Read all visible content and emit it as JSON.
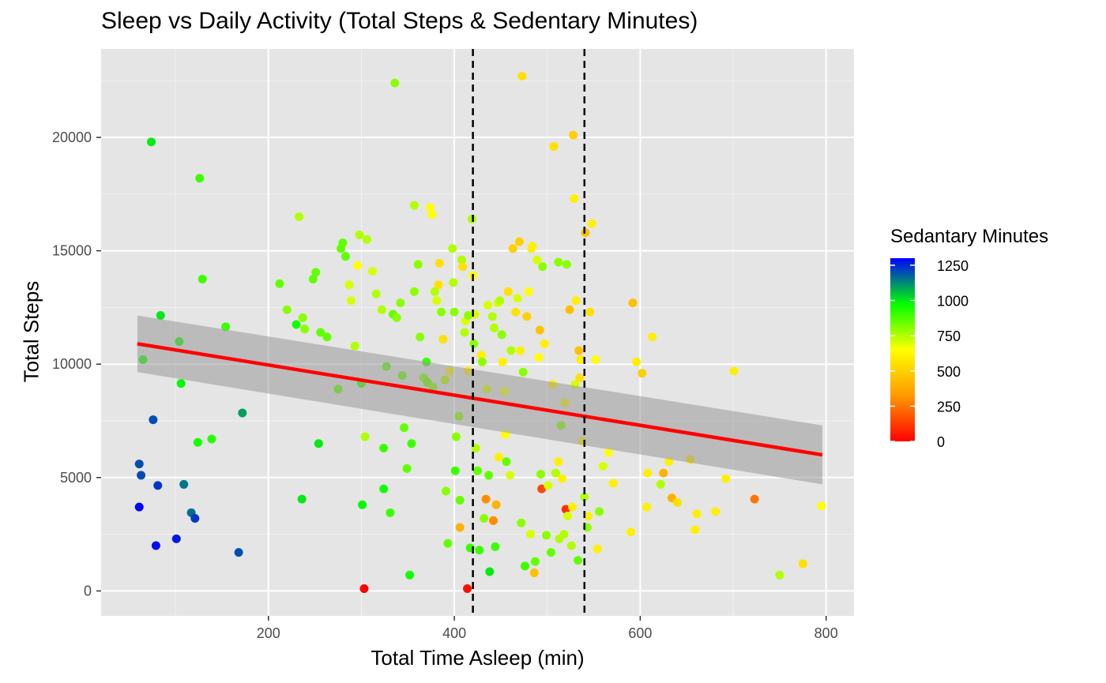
{
  "chart_data": {
    "type": "scatter",
    "title": "Sleep vs Daily Activity (Total Steps & Sedentary Minutes)",
    "xlabel": "Total Time Asleep (min)",
    "ylabel": "Total Steps",
    "xlim": [
      20,
      830
    ],
    "ylim": [
      -1100,
      23900
    ],
    "x_ticks": [
      200,
      400,
      600,
      800
    ],
    "y_ticks": [
      0,
      5000,
      10000,
      15000,
      20000
    ],
    "grid": true,
    "vlines": [
      420,
      540
    ],
    "trend": {
      "type": "linear",
      "x": [
        59,
        796
      ],
      "y": [
        10900,
        6000
      ],
      "band_lower": [
        9650,
        4700
      ],
      "band_upper": [
        12150,
        7300
      ],
      "color": "#ff0000"
    },
    "legend": {
      "title": "Sedantary Minutes",
      "ticks": [
        0,
        250,
        500,
        750,
        1000,
        1250
      ],
      "range": [
        0,
        1300
      ],
      "colors": [
        "#ff0000",
        "#ff9900",
        "#ffff00",
        "#00ff00",
        "#0000ff"
      ],
      "position": "right"
    },
    "points": [
      [
        61,
        3700,
        1300
      ],
      [
        61,
        5600,
        1200
      ],
      [
        63,
        5100,
        1200
      ],
      [
        65,
        10200,
        950
      ],
      [
        74,
        19800,
        1000
      ],
      [
        76,
        7550,
        1200
      ],
      [
        79,
        2000,
        1280
      ],
      [
        81,
        4650,
        1230
      ],
      [
        84,
        12150,
        1000
      ],
      [
        101,
        2300,
        1270
      ],
      [
        104,
        11000,
        960
      ],
      [
        106,
        9150,
        980
      ],
      [
        109,
        4700,
        1150
      ],
      [
        117,
        3450,
        1160
      ],
      [
        121,
        3200,
        1230
      ],
      [
        124,
        6550,
        950
      ],
      [
        126,
        18200,
        900
      ],
      [
        129,
        13750,
        900
      ],
      [
        139,
        6700,
        930
      ],
      [
        154,
        11650,
        900
      ],
      [
        168,
        1700,
        1200
      ],
      [
        172,
        7850,
        1100
      ],
      [
        212,
        13550,
        850
      ],
      [
        220,
        12400,
        800
      ],
      [
        230,
        11750,
        950
      ],
      [
        233,
        16500,
        750
      ],
      [
        236,
        4050,
        1000
      ],
      [
        237,
        12050,
        800
      ],
      [
        239,
        11550,
        800
      ],
      [
        248,
        13750,
        850
      ],
      [
        251,
        14050,
        850
      ],
      [
        254,
        6500,
        1000
      ],
      [
        256,
        11400,
        850
      ],
      [
        263,
        11200,
        850
      ],
      [
        275,
        8900,
        850
      ],
      [
        278,
        15100,
        850
      ],
      [
        280,
        15350,
        850
      ],
      [
        283,
        14750,
        850
      ],
      [
        287,
        13500,
        700
      ],
      [
        289,
        12800,
        700
      ],
      [
        293,
        10800,
        750
      ],
      [
        296,
        14350,
        650
      ],
      [
        298,
        15700,
        750
      ],
      [
        300,
        9150,
        900
      ],
      [
        301,
        3800,
        980
      ],
      [
        303,
        100,
        0
      ],
      [
        304,
        6800,
        750
      ],
      [
        306,
        15500,
        750
      ],
      [
        312,
        14100,
        700
      ],
      [
        316,
        13100,
        750
      ],
      [
        322,
        12400,
        750
      ],
      [
        324,
        6300,
        900
      ],
      [
        324,
        4500,
        950
      ],
      [
        327,
        9900,
        850
      ],
      [
        331,
        3450,
        900
      ],
      [
        334,
        12200,
        850
      ],
      [
        336,
        22400,
        800
      ],
      [
        338,
        12050,
        800
      ],
      [
        342,
        12700,
        800
      ],
      [
        344,
        9500,
        850
      ],
      [
        346,
        7200,
        850
      ],
      [
        349,
        5400,
        850
      ],
      [
        352,
        700,
        950
      ],
      [
        354,
        6500,
        900
      ],
      [
        357,
        13200,
        800
      ],
      [
        357,
        17000,
        750
      ],
      [
        361,
        14400,
        800
      ],
      [
        363,
        11200,
        800
      ],
      [
        367,
        9400,
        800
      ],
      [
        370,
        10100,
        900
      ],
      [
        371,
        9200,
        850
      ],
      [
        374,
        16900,
        650
      ],
      [
        376,
        16600,
        650
      ],
      [
        377,
        9000,
        800
      ],
      [
        379,
        13200,
        750
      ],
      [
        381,
        12800,
        700
      ],
      [
        383,
        13500,
        550
      ],
      [
        384,
        14450,
        550
      ],
      [
        386,
        12300,
        800
      ],
      [
        388,
        11100,
        550
      ],
      [
        390,
        9300,
        750
      ],
      [
        391,
        4400,
        800
      ],
      [
        393,
        2100,
        850
      ],
      [
        395,
        9700,
        600
      ],
      [
        398,
        15100,
        750
      ],
      [
        399,
        13600,
        750
      ],
      [
        400,
        12300,
        800
      ],
      [
        401,
        5300,
        900
      ],
      [
        402,
        6800,
        800
      ],
      [
        405,
        7700,
        800
      ],
      [
        406,
        4000,
        850
      ],
      [
        406,
        2800,
        400
      ],
      [
        408,
        14600,
        750
      ],
      [
        409,
        14300,
        550
      ],
      [
        411,
        11400,
        750
      ],
      [
        412,
        11900,
        700
      ],
      [
        414,
        100,
        30
      ],
      [
        415,
        12150,
        800
      ],
      [
        415,
        9700,
        600
      ],
      [
        417,
        1900,
        900
      ],
      [
        419,
        16400,
        750
      ],
      [
        420,
        13900,
        650
      ],
      [
        421,
        10900,
        800
      ],
      [
        422,
        12200,
        700
      ],
      [
        423,
        6300,
        750
      ],
      [
        425,
        5300,
        850
      ],
      [
        427,
        1800,
        900
      ],
      [
        429,
        10400,
        600
      ],
      [
        430,
        10100,
        800
      ],
      [
        432,
        3200,
        800
      ],
      [
        434,
        4050,
        300
      ],
      [
        435,
        8900,
        700
      ],
      [
        436,
        12600,
        700
      ],
      [
        437,
        5100,
        850
      ],
      [
        438,
        850,
        1000
      ],
      [
        441,
        12100,
        750
      ],
      [
        442,
        3100,
        300
      ],
      [
        443,
        11600,
        750
      ],
      [
        444,
        1950,
        900
      ],
      [
        445,
        3800,
        400
      ],
      [
        447,
        12700,
        700
      ],
      [
        448,
        5900,
        600
      ],
      [
        449,
        12800,
        750
      ],
      [
        451,
        11300,
        800
      ],
      [
        452,
        10100,
        600
      ],
      [
        454,
        8800,
        650
      ],
      [
        455,
        6900,
        650
      ],
      [
        456,
        5700,
        850
      ],
      [
        458,
        13200,
        550
      ],
      [
        460,
        5100,
        700
      ],
      [
        461,
        10600,
        750
      ],
      [
        463,
        15100,
        500
      ],
      [
        466,
        12300,
        550
      ],
      [
        468,
        12900,
        700
      ],
      [
        470,
        15400,
        500
      ],
      [
        471,
        10600,
        600
      ],
      [
        472,
        3000,
        800
      ],
      [
        473,
        22700,
        550
      ],
      [
        474,
        9650,
        800
      ],
      [
        476,
        1100,
        900
      ],
      [
        478,
        12100,
        500
      ],
      [
        480,
        13200,
        650
      ],
      [
        482,
        2500,
        700
      ],
      [
        483,
        15100,
        600
      ],
      [
        484,
        15200,
        600
      ],
      [
        486,
        800,
        450
      ],
      [
        487,
        1300,
        850
      ],
      [
        489,
        14600,
        700
      ],
      [
        491,
        10300,
        650
      ],
      [
        492,
        11500,
        450
      ],
      [
        493,
        5150,
        800
      ],
      [
        494,
        4500,
        150
      ],
      [
        495,
        14300,
        800
      ],
      [
        497,
        10900,
        600
      ],
      [
        499,
        2450,
        800
      ],
      [
        501,
        4650,
        700
      ],
      [
        504,
        1700,
        850
      ],
      [
        506,
        9100,
        600
      ],
      [
        507,
        19600,
        550
      ],
      [
        509,
        5200,
        750
      ],
      [
        512,
        14500,
        800
      ],
      [
        512,
        5700,
        600
      ],
      [
        513,
        2300,
        750
      ],
      [
        515,
        7300,
        800
      ],
      [
        516,
        4950,
        600
      ],
      [
        518,
        2500,
        750
      ],
      [
        519,
        8300,
        600
      ],
      [
        520,
        3600,
        100
      ],
      [
        521,
        14400,
        800
      ],
      [
        522,
        3300,
        700
      ],
      [
        524,
        12400,
        450
      ],
      [
        526,
        2000,
        750
      ],
      [
        527,
        3700,
        600
      ],
      [
        528,
        20100,
        500
      ],
      [
        529,
        17300,
        600
      ],
      [
        530,
        9100,
        700
      ],
      [
        531,
        12800,
        600
      ],
      [
        533,
        1350,
        850
      ],
      [
        534,
        10600,
        450
      ],
      [
        535,
        9400,
        550
      ],
      [
        536,
        10200,
        600
      ],
      [
        538,
        6600,
        600
      ],
      [
        540,
        4150,
        750
      ],
      [
        541,
        15800,
        450
      ],
      [
        543,
        2800,
        800
      ],
      [
        544,
        3300,
        600
      ],
      [
        546,
        12300,
        550
      ],
      [
        548,
        16200,
        600
      ],
      [
        552,
        10200,
        650
      ],
      [
        554,
        1850,
        600
      ],
      [
        556,
        3500,
        800
      ],
      [
        560,
        5500,
        700
      ],
      [
        566,
        6100,
        650
      ],
      [
        571,
        4750,
        600
      ],
      [
        590,
        2600,
        600
      ],
      [
        592,
        12700,
        450
      ],
      [
        596,
        10100,
        600
      ],
      [
        602,
        9600,
        500
      ],
      [
        607,
        3700,
        600
      ],
      [
        608,
        5200,
        600
      ],
      [
        613,
        11200,
        600
      ],
      [
        622,
        4700,
        750
      ],
      [
        625,
        5200,
        400
      ],
      [
        631,
        5700,
        600
      ],
      [
        634,
        4100,
        400
      ],
      [
        640,
        3900,
        550
      ],
      [
        654,
        5800,
        550
      ],
      [
        659,
        2700,
        600
      ],
      [
        661,
        3400,
        600
      ],
      [
        681,
        3500,
        600
      ],
      [
        692,
        4950,
        600
      ],
      [
        701,
        9700,
        600
      ],
      [
        723,
        4050,
        250
      ],
      [
        750,
        700,
        750
      ],
      [
        775,
        1200,
        550
      ],
      [
        795,
        3750,
        650
      ]
    ]
  }
}
